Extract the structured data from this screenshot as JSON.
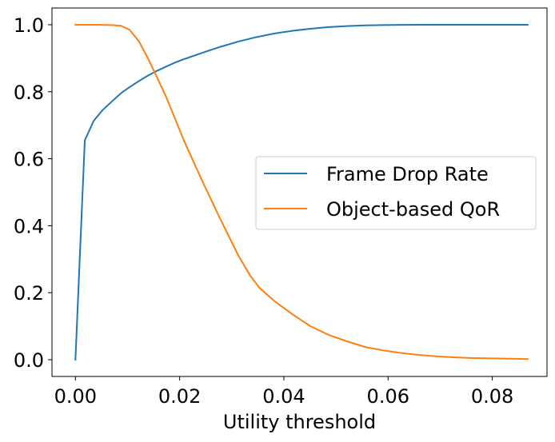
{
  "chart_data": {
    "type": "line",
    "title": "",
    "xlabel": "Utility threshold",
    "ylabel": "",
    "xlim": [
      -0.0045,
      0.0905
    ],
    "ylim": [
      -0.05,
      1.05
    ],
    "xticks": [
      "0.00",
      "0.02",
      "0.04",
      "0.06",
      "0.08"
    ],
    "yticks": [
      "0.0",
      "0.2",
      "0.4",
      "0.6",
      "0.8",
      "1.0"
    ],
    "grid": false,
    "legend_position": "center-right",
    "series": [
      {
        "name": "Frame Drop Rate",
        "color": "#1f77b4",
        "x": [
          0.0,
          0.0018,
          0.0035,
          0.0052,
          0.007,
          0.0087,
          0.0104,
          0.0122,
          0.0139,
          0.0156,
          0.0174,
          0.0191,
          0.0208,
          0.0243,
          0.0278,
          0.0313,
          0.0347,
          0.0382,
          0.0417,
          0.0451,
          0.0486,
          0.0521,
          0.0556,
          0.059,
          0.0625,
          0.066,
          0.0694,
          0.0729,
          0.0764,
          0.0799,
          0.0833,
          0.0868
        ],
        "y": [
          0.0,
          0.655,
          0.713,
          0.745,
          0.771,
          0.795,
          0.814,
          0.832,
          0.848,
          0.862,
          0.875,
          0.887,
          0.897,
          0.916,
          0.934,
          0.95,
          0.963,
          0.974,
          0.982,
          0.988,
          0.993,
          0.996,
          0.998,
          0.999,
          0.9995,
          1.0,
          1.0,
          1.0,
          1.0,
          1.0,
          1.0,
          1.0
        ]
      },
      {
        "name": "Object-based QoR",
        "color": "#ff7f0e",
        "x": [
          0.0,
          0.0035,
          0.007,
          0.0087,
          0.0104,
          0.0122,
          0.0139,
          0.0156,
          0.0174,
          0.0191,
          0.0208,
          0.0243,
          0.0278,
          0.0313,
          0.0335,
          0.0353,
          0.0382,
          0.0417,
          0.0451,
          0.0486,
          0.0521,
          0.0556,
          0.059,
          0.0625,
          0.066,
          0.0694,
          0.0729,
          0.0764,
          0.0799,
          0.0833,
          0.0868
        ],
        "y": [
          1.0,
          1.0,
          0.999,
          0.997,
          0.985,
          0.95,
          0.9,
          0.845,
          0.785,
          0.72,
          0.655,
          0.535,
          0.42,
          0.31,
          0.252,
          0.215,
          0.175,
          0.135,
          0.1,
          0.074,
          0.055,
          0.038,
          0.028,
          0.02,
          0.014,
          0.01,
          0.007,
          0.005,
          0.004,
          0.003,
          0.002
        ]
      }
    ]
  }
}
